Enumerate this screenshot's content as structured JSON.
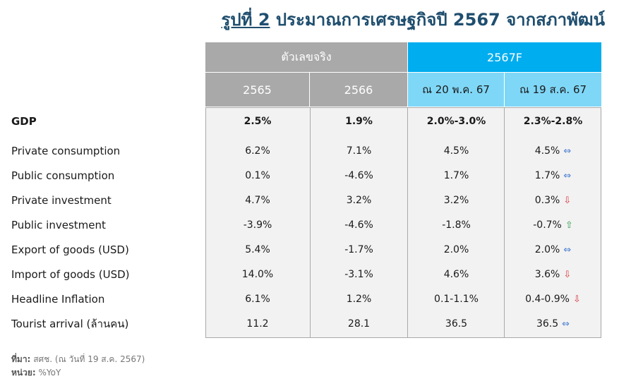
{
  "title": {
    "figure": "รูปที่ 2",
    "text": "ประมาณการเศรษฐกิจปี 2567 จากสภาพัฒน์"
  },
  "header": {
    "actual": "ตัวเลขจริง",
    "forecast": "2567F",
    "columns": [
      "2565",
      "2566",
      "ณ 20 พ.ค. 67",
      "ณ 19 ส.ค. 67"
    ]
  },
  "rows": [
    {
      "label": "GDP",
      "v1": "2.5%",
      "v2": "1.9%",
      "v3": "2.0%-3.0%",
      "v4": "2.3%-2.8%",
      "trend": "none",
      "trend_icon": ""
    },
    {
      "label": "Private consumption",
      "v1": "6.2%",
      "v2": "7.1%",
      "v3": "4.5%",
      "v4": "4.5%",
      "trend": "flat",
      "trend_icon": "⇔"
    },
    {
      "label": "Public consumption",
      "v1": "0.1%",
      "v2": "-4.6%",
      "v3": "1.7%",
      "v4": "1.7%",
      "trend": "flat",
      "trend_icon": "⇔"
    },
    {
      "label": "Private investment",
      "v1": "4.7%",
      "v2": "3.2%",
      "v3": "3.2%",
      "v4": "0.3%",
      "trend": "down",
      "trend_icon": "⇩"
    },
    {
      "label": "Public investment",
      "v1": "-3.9%",
      "v2": "-4.6%",
      "v3": "-1.8%",
      "v4": "-0.7%",
      "trend": "up",
      "trend_icon": "⇧"
    },
    {
      "label": "Export of goods (USD)",
      "v1": "5.4%",
      "v2": "-1.7%",
      "v3": "2.0%",
      "v4": "2.0%",
      "trend": "flat",
      "trend_icon": "⇔"
    },
    {
      "label": "Import of goods (USD)",
      "v1": "14.0%",
      "v2": "-3.1%",
      "v3": "4.6%",
      "v4": "3.6%",
      "trend": "down",
      "trend_icon": "⇩"
    },
    {
      "label": "Headline Inflation",
      "v1": "6.1%",
      "v2": "1.2%",
      "v3": "0.1-1.1%",
      "v4": "0.4-0.9%",
      "trend": "down",
      "trend_icon": "⇩"
    },
    {
      "label": "Tourist arrival (ล้านคน)",
      "v1": "11.2",
      "v2": "28.1",
      "v3": "36.5",
      "v4": "36.5",
      "trend": "flat",
      "trend_icon": "⇔"
    }
  ],
  "footer": {
    "source_label": "ที่มา:",
    "source_text": "สศช. (ณ วันที่ 19 ส.ค. 2567)",
    "unit_label": "หน่วย:",
    "unit_text": "%YoY"
  },
  "colors": {
    "title": "#1f4e6e",
    "actual_header": "#a9a9a9",
    "forecast_header": "#00adef",
    "forecast_subheader": "#7fd7f7"
  }
}
